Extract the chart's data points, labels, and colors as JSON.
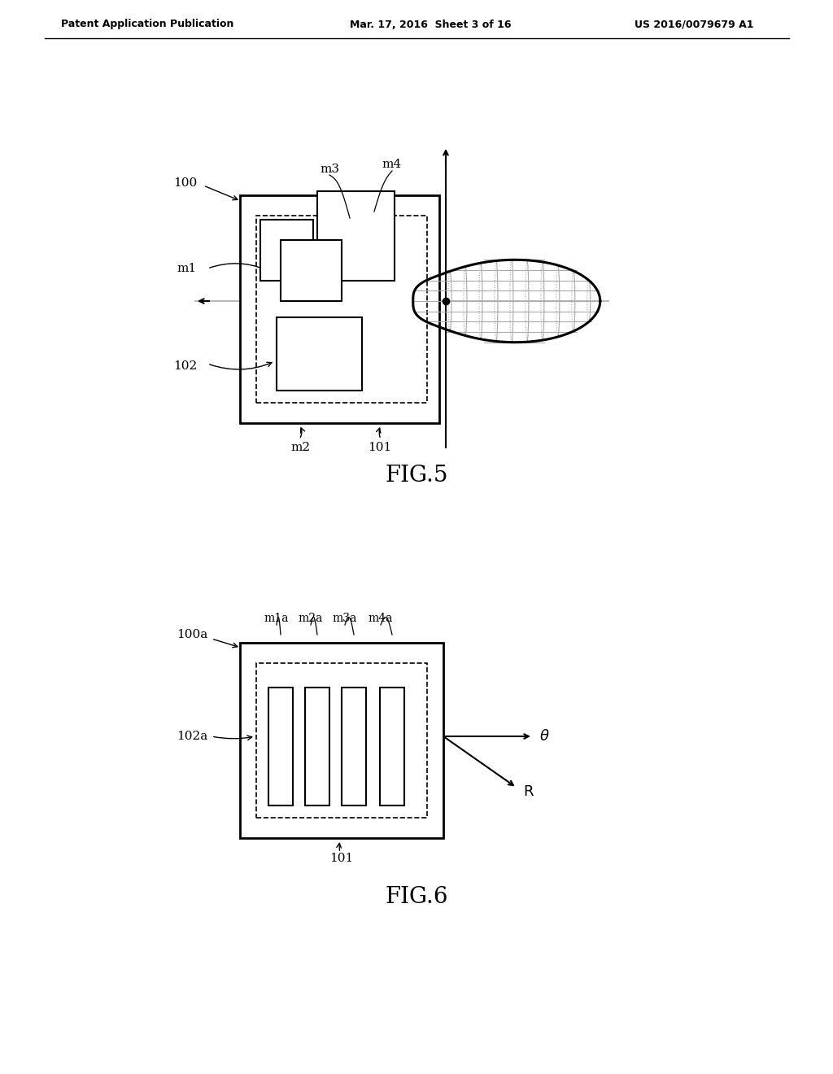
{
  "bg_color": "#ffffff",
  "header_left": "Patent Application Publication",
  "header_mid": "Mar. 17, 2016  Sheet 3 of 16",
  "header_right": "US 2016/0079679 A1",
  "fig5_label": "FIG.5",
  "fig6_label": "FIG.6"
}
